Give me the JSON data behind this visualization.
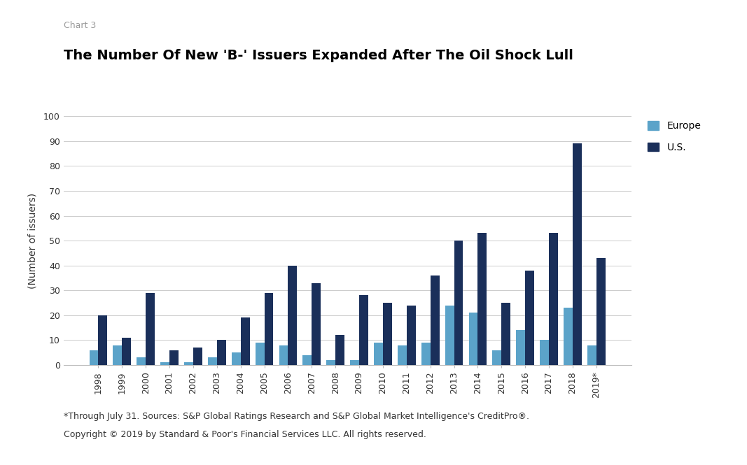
{
  "title": "The Number Of New 'B-' Issuers Expanded After The Oil Shock Lull",
  "chart_label": "Chart 3",
  "ylabel": "(Number of issuers)",
  "footnote_line1": "*Through July 31. Sources: S&P Global Ratings Research and S&P Global Market Intelligence's CreditPro®.",
  "footnote_line2": "Copyright © 2019 by Standard & Poor's Financial Services LLC. All rights reserved.",
  "categories": [
    "1998",
    "1999",
    "2000",
    "2001",
    "2002",
    "2003",
    "2004",
    "2005",
    "2006",
    "2007",
    "2008",
    "2009",
    "2010",
    "2011",
    "2012",
    "2013",
    "2014",
    "2015",
    "2016",
    "2017",
    "2018",
    "2019*"
  ],
  "europe": [
    6,
    8,
    3,
    1,
    1,
    3,
    5,
    9,
    8,
    4,
    2,
    2,
    9,
    8,
    9,
    24,
    21,
    6,
    14,
    10,
    23,
    8
  ],
  "us": [
    20,
    11,
    29,
    6,
    7,
    10,
    19,
    29,
    40,
    33,
    12,
    28,
    25,
    24,
    36,
    50,
    53,
    25,
    38,
    53,
    89,
    43
  ],
  "europe_color": "#5ba3c9",
  "us_color": "#1a2f5a",
  "ylim": [
    0,
    100
  ],
  "yticks": [
    0,
    10,
    20,
    30,
    40,
    50,
    60,
    70,
    80,
    90,
    100
  ],
  "background_color": "#ffffff",
  "grid_color": "#cccccc",
  "title_fontsize": 14,
  "chart_label_fontsize": 9,
  "label_fontsize": 10,
  "tick_fontsize": 9,
  "footnote_fontsize": 9,
  "legend_labels": [
    "Europe",
    "U.S."
  ],
  "bar_width": 0.38
}
